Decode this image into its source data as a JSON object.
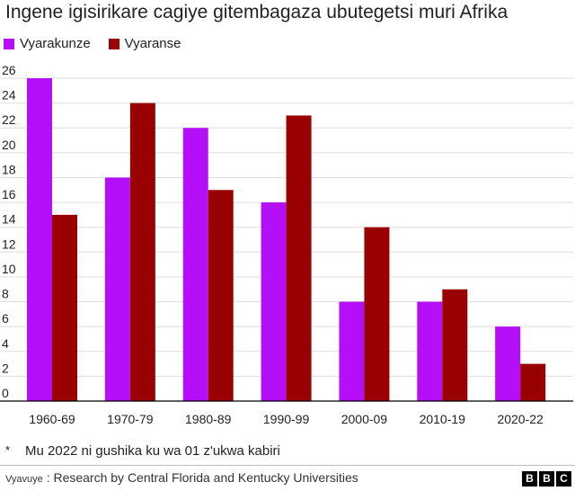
{
  "title": "Ingene igisirikare cagiye gitembagaza ubutegetsi muri Afrika",
  "note": {
    "marker": "*",
    "text": "Mu 2022 ni gushika ku wa 01 z'ukwa kabiri"
  },
  "source": {
    "label": "Vyavuye",
    "text": ": Research by Central Florida and Kentucky Universities"
  },
  "logo": {
    "letters": [
      "B",
      "B",
      "C"
    ]
  },
  "colors": {
    "series1": "#b40ff8",
    "series2": "#990000",
    "axis": "#000000",
    "grid": "#dddddd"
  },
  "chart_data": {
    "type": "bar",
    "title": "Ingene igisirikare cagiye gitembagaza ubutegetsi muri Afrika",
    "categories": [
      "1960-69",
      "1970-79",
      "1980-89",
      "1990-99",
      "2000-09",
      "2010-19",
      "2020-22"
    ],
    "series": [
      {
        "name": "Vyarakunze",
        "values": [
          26,
          18,
          22,
          16,
          8,
          8,
          6
        ]
      },
      {
        "name": "Vyaranse",
        "values": [
          15,
          24,
          17,
          23,
          14,
          9,
          3
        ]
      }
    ],
    "ylim": [
      0,
      26
    ],
    "yticks": [
      0,
      2,
      4,
      6,
      8,
      10,
      12,
      14,
      16,
      18,
      20,
      22,
      24,
      26
    ],
    "grid": true,
    "xlabel": "",
    "ylabel": "",
    "legend": "top-left"
  }
}
